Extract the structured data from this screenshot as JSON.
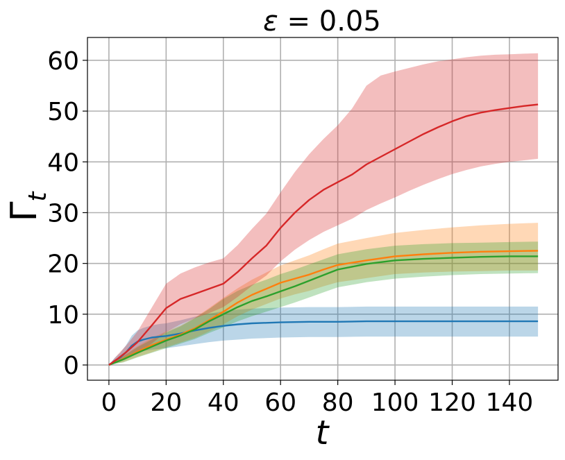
{
  "chart_data": {
    "type": "line",
    "title_prefix": "ε",
    "title_suffix": " = 0.05",
    "xlabel": "t",
    "ylabel_main": "Γ",
    "ylabel_sub": "t",
    "xlim": [
      -7.5,
      157
    ],
    "ylim": [
      -3,
      64.5
    ],
    "xticks": [
      0,
      20,
      40,
      60,
      80,
      100,
      120,
      140
    ],
    "yticks": [
      0,
      10,
      20,
      30,
      40,
      50,
      60
    ],
    "grid": true,
    "series": [
      {
        "color": "#1f77b4",
        "x": [
          0,
          2,
          4,
          6,
          8,
          10,
          12,
          15,
          18,
          20,
          25,
          30,
          35,
          40,
          45,
          50,
          55,
          60,
          70,
          80,
          90,
          100,
          120,
          150
        ],
        "mean": [
          0,
          0.8,
          1.5,
          2.5,
          3.8,
          4.6,
          5.0,
          5.4,
          5.6,
          5.7,
          6.2,
          6.8,
          7.3,
          7.7,
          8.0,
          8.2,
          8.3,
          8.4,
          8.5,
          8.5,
          8.6,
          8.6,
          8.6,
          8.6
        ],
        "lower": [
          0,
          0.3,
          0.7,
          1.2,
          2.0,
          2.5,
          2.8,
          3.0,
          3.2,
          3.3,
          3.7,
          4.1,
          4.5,
          4.8,
          5.0,
          5.2,
          5.3,
          5.4,
          5.5,
          5.5,
          5.6,
          5.6,
          5.6,
          5.6
        ],
        "upper": [
          0,
          1.4,
          2.4,
          3.9,
          5.8,
          6.8,
          7.3,
          7.8,
          8.1,
          8.2,
          8.8,
          9.5,
          10.1,
          10.6,
          10.9,
          11.1,
          11.2,
          11.3,
          11.4,
          11.4,
          11.5,
          11.5,
          11.5,
          11.5
        ]
      },
      {
        "color": "#ff7f0e",
        "x": [
          0,
          5,
          10,
          15,
          20,
          25,
          30,
          35,
          40,
          45,
          50,
          55,
          60,
          65,
          70,
          75,
          80,
          90,
          100,
          110,
          120,
          130,
          140,
          150
        ],
        "mean": [
          0,
          1.2,
          2.6,
          3.9,
          5.0,
          6.0,
          7.2,
          8.8,
          10.5,
          12.3,
          13.8,
          15.0,
          16.2,
          17.0,
          17.8,
          18.8,
          19.7,
          20.6,
          21.4,
          21.8,
          22.1,
          22.3,
          22.4,
          22.5
        ],
        "lower": [
          0,
          0.6,
          1.6,
          2.5,
          3.5,
          4.4,
          5.3,
          6.6,
          8.0,
          9.6,
          10.9,
          12.0,
          13.1,
          13.9,
          14.6,
          15.5,
          16.3,
          17.1,
          17.9,
          18.2,
          18.4,
          18.5,
          18.6,
          18.6
        ],
        "upper": [
          0,
          1.8,
          3.7,
          5.3,
          6.6,
          7.8,
          9.3,
          11.2,
          13.2,
          15.1,
          16.8,
          18.2,
          19.6,
          20.6,
          21.6,
          22.8,
          23.9,
          25.0,
          26.0,
          26.6,
          27.1,
          27.5,
          27.8,
          28.0
        ]
      },
      {
        "color": "#2ca02c",
        "x": [
          0,
          5,
          10,
          15,
          20,
          25,
          30,
          35,
          40,
          45,
          50,
          55,
          60,
          65,
          70,
          75,
          80,
          90,
          100,
          110,
          120,
          130,
          140,
          150
        ],
        "mean": [
          0,
          1.1,
          2.4,
          3.6,
          4.8,
          5.8,
          7.0,
          8.6,
          10.0,
          11.4,
          12.6,
          13.5,
          14.5,
          15.5,
          16.6,
          17.7,
          18.8,
          19.9,
          20.6,
          20.9,
          21.1,
          21.3,
          21.4,
          21.4
        ],
        "lower": [
          0,
          0.5,
          1.5,
          2.4,
          3.3,
          4.2,
          5.1,
          6.3,
          7.4,
          8.6,
          9.6,
          10.5,
          11.4,
          12.3,
          13.3,
          14.3,
          15.3,
          16.3,
          17.0,
          17.4,
          17.7,
          17.9,
          18.0,
          18.1
        ],
        "upper": [
          0,
          1.7,
          3.5,
          5.0,
          6.4,
          7.6,
          9.2,
          11.0,
          13.0,
          14.6,
          15.8,
          16.8,
          17.9,
          18.8,
          19.8,
          20.8,
          21.8,
          22.8,
          23.5,
          23.8,
          24.0,
          24.1,
          24.2,
          24.3
        ]
      },
      {
        "color": "#d62728",
        "x": [
          0,
          3,
          6,
          10,
          15,
          20,
          25,
          30,
          35,
          40,
          45,
          50,
          55,
          60,
          65,
          70,
          75,
          80,
          85,
          90,
          95,
          100,
          105,
          110,
          115,
          120,
          125,
          130,
          135,
          140,
          145,
          150
        ],
        "mean": [
          0,
          1.2,
          2.5,
          4.5,
          7.8,
          11.2,
          13.0,
          14.0,
          15.0,
          16.0,
          18.3,
          21.0,
          23.5,
          27.0,
          30.0,
          32.5,
          34.5,
          36.0,
          37.5,
          39.5,
          41.0,
          42.5,
          44.0,
          45.5,
          46.8,
          48.0,
          49.0,
          49.7,
          50.2,
          50.6,
          51.0,
          51.3
        ],
        "lower": [
          0,
          0.5,
          1.3,
          2.5,
          4.2,
          6.5,
          8.0,
          9.2,
          10.2,
          11.4,
          13.4,
          15.6,
          17.6,
          20.4,
          22.7,
          24.6,
          26.2,
          27.5,
          28.8,
          30.5,
          31.8,
          33.0,
          34.3,
          35.5,
          36.6,
          37.6,
          38.4,
          39.1,
          39.6,
          40.0,
          40.3,
          40.6
        ],
        "upper": [
          0,
          2.0,
          3.8,
          6.6,
          11.3,
          16.0,
          18.0,
          19.2,
          20.2,
          21.0,
          23.6,
          26.8,
          29.8,
          34.0,
          38.0,
          41.5,
          44.5,
          47.2,
          50.5,
          55.0,
          57.0,
          57.8,
          58.5,
          59.2,
          59.8,
          60.2,
          60.6,
          60.9,
          61.1,
          61.2,
          61.3,
          61.4
        ]
      }
    ]
  }
}
